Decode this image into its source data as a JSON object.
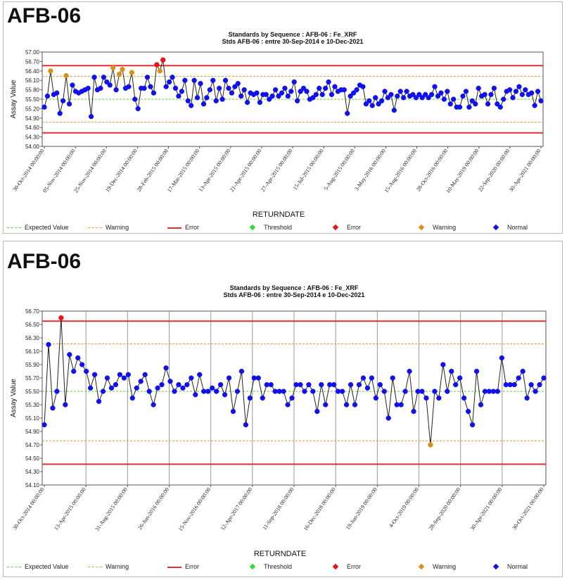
{
  "charts": [
    {
      "heading": "AFB-06",
      "title": "Standards by Sequence : AFB-06 : Fe_XRF",
      "subtitle": "Stds AFB-06 : entre 30-Sep-2014 e 10-Dec-2021",
      "xlabel": "RETURNDATE",
      "ylabel": "Assay Value"
    },
    {
      "heading": "AFB-06",
      "title": "Standards by Sequence : AFB-06 : Fe_XRF",
      "subtitle": "Stds AFB-06 : entre 30-Sep-2014 e 10-Dec-2021",
      "xlabel": "RETURNDATE",
      "ylabel": "Assay Value"
    }
  ],
  "legend": [
    {
      "label": "Expected Value",
      "kind": "dashed",
      "color": "#66cc33"
    },
    {
      "label": "Warning",
      "kind": "dashed",
      "color": "#e0a020"
    },
    {
      "label": "Error",
      "kind": "solid",
      "color": "#e03030"
    },
    {
      "label": "Threshold",
      "kind": "dot",
      "color": "#33dd33"
    },
    {
      "label": "Error",
      "kind": "dot",
      "color": "#ee1111"
    },
    {
      "label": "Warning",
      "kind": "dot",
      "color": "#d9901a"
    },
    {
      "label": "Normal",
      "kind": "dot",
      "color": "#1111ee"
    }
  ],
  "colors": {
    "normal": "#1111ee",
    "warning": "#d9901a",
    "error": "#ee1111",
    "error_line": "#e03030",
    "warning_line": "#e0a020",
    "expected_line": "#66cc33",
    "data_line": "#222222"
  },
  "chart_data": [
    {
      "type": "line",
      "title": "Standards by Sequence : AFB-06 : Fe_XRF",
      "subtitle": "Stds AFB-06 : entre 30-Sep-2014 e 10-Dec-2021",
      "xlabel": "RETURNDATE",
      "ylabel": "Assay Value",
      "ylim": [
        54.0,
        57.0
      ],
      "yticks": [
        "57.00",
        "56.70",
        "56.40",
        "56.10",
        "55.80",
        "55.50",
        "55.20",
        "54.90",
        "54.60",
        "54.30",
        "54.00"
      ],
      "xticks": [
        "30-Oct-2014 00:00:00",
        "05-Nov-2014 00:00:00",
        "25-Nov-2014 00:00:00",
        "19-Dec-2014 00:00:00",
        "28-Feb-2015 00:00:00",
        "17-Mar-2015 00:00:00",
        "13-Apr-2015 00:00:00",
        "21-Apr-2015 00:00:00",
        "27-Apr-2015 00:00:00",
        "15-Jul-2015 00:00:00",
        "5-Aug-2015 00:00:00",
        "3-May-2016 00:00:00",
        "15-Aug-2016 00:00:00",
        "28-Oct-2016 00:00:00",
        "10-May-2019 00:00:00",
        "22-Sep-2020 00:00:00",
        "30-Apr-2021 00:00:00"
      ],
      "reference_lines": {
        "expected": 55.5,
        "warning": [
          54.77,
          56.23
        ],
        "error": [
          54.43,
          56.57
        ]
      },
      "grid": false,
      "legend": "bottom",
      "series": [
        {
          "values": [
            55.25,
            55.6,
            56.4,
            55.65,
            55.7,
            55.05,
            55.45,
            56.25,
            55.35,
            55.95,
            55.75,
            55.7,
            55.75,
            55.8,
            55.85,
            54.95,
            56.2,
            55.8,
            55.85,
            56.2,
            56.05,
            55.95,
            56.5,
            55.8,
            56.3,
            56.45,
            55.85,
            55.9,
            56.35,
            55.5,
            55.2,
            55.85,
            55.85,
            56.2,
            55.9,
            55.7,
            56.6,
            56.4,
            56.75,
            55.9,
            56.05,
            56.2,
            55.85,
            55.6,
            55.75,
            56.1,
            55.45,
            55.3,
            56.1,
            55.55,
            56.0,
            55.35,
            55.55,
            55.8,
            56.1,
            55.45,
            55.85,
            55.5,
            56.1,
            55.85,
            55.7,
            55.9,
            56.0,
            55.6,
            55.8,
            55.4,
            55.7,
            55.65,
            55.7,
            55.4,
            55.65,
            55.65,
            55.5,
            55.6,
            55.8,
            55.6,
            55.7,
            55.85,
            55.6,
            55.75,
            56.05,
            55.45,
            55.75,
            55.85,
            55.75,
            55.5,
            55.55,
            55.65,
            55.85,
            55.65,
            55.85,
            56.05,
            55.65,
            55.9,
            55.75,
            55.8,
            55.8,
            55.05,
            55.6,
            55.7,
            55.8,
            55.95,
            55.9,
            55.35,
            55.45,
            55.3,
            55.55,
            55.35,
            55.45,
            55.75,
            55.55,
            55.65,
            55.15,
            55.6,
            55.75,
            55.55,
            55.75,
            55.6,
            55.65,
            55.55,
            55.65,
            55.55,
            55.65,
            55.55,
            55.65,
            55.9,
            55.6,
            55.7,
            55.5,
            55.75,
            55.35,
            55.5,
            55.25,
            55.25,
            55.6,
            55.75,
            55.25,
            55.45,
            55.35,
            55.85,
            55.6,
            55.65,
            55.35,
            55.65,
            55.85,
            55.35,
            55.25,
            55.5,
            55.75,
            55.8,
            55.55,
            55.75,
            55.9,
            55.65,
            55.8,
            55.65,
            55.7,
            55.3,
            55.75,
            55.45
          ],
          "status": {
            "2": "warning",
            "7": "warning",
            "22": "warning",
            "24": "warning",
            "25": "warning",
            "28": "warning",
            "36": "error",
            "37": "warning",
            "38": "error"
          }
        }
      ]
    },
    {
      "type": "line",
      "title": "Standards by Sequence : AFB-06 : Fe_XRF",
      "subtitle": "Stds AFB-06 : entre 30-Sep-2014 e 10-Dec-2021",
      "xlabel": "RETURNDATE",
      "ylabel": "Assay Value",
      "ylim": [
        54.1,
        56.7
      ],
      "yticks": [
        "56.70",
        "56.50",
        "56.30",
        "56.10",
        "55.90",
        "55.70",
        "55.50",
        "55.30",
        "55.10",
        "54.90",
        "54.70",
        "54.50",
        "54.30",
        "54.10"
      ],
      "xticks": [
        "30-Oct-2014 00:00:00",
        "13-Apr-2015 00:00:00",
        "31-Aug-2015 00:00:00",
        "26-Jun-2016 00:00:00",
        "15-Nov-2016 00:00:00",
        "12-Apr-2017 00:00:00",
        "11-Sep-2018 00:00:00",
        "16-Dec-2018 00:00:00",
        "19-Jun-2019 00:00:00",
        "4-Oct-2019 00:00:00",
        "28-Sep-2020 00:00:00",
        "30-Apr-2021 00:00:00",
        "30-Oct-2021 00:00:00"
      ],
      "reference_lines": {
        "expected": 55.5,
        "warning": [
          54.76,
          56.21
        ],
        "error": [
          54.41,
          56.55
        ]
      },
      "grid": true,
      "legend": "bottom",
      "series": [
        {
          "values": [
            55.0,
            56.2,
            55.25,
            55.5,
            56.6,
            55.3,
            56.05,
            55.8,
            56.0,
            55.9,
            55.8,
            55.55,
            55.75,
            55.35,
            55.5,
            55.7,
            55.55,
            55.6,
            55.75,
            55.7,
            55.75,
            55.4,
            55.55,
            55.65,
            55.75,
            55.5,
            55.3,
            55.55,
            55.6,
            55.85,
            55.65,
            55.5,
            55.6,
            55.55,
            55.6,
            55.7,
            55.45,
            55.75,
            55.5,
            55.5,
            55.55,
            55.5,
            55.6,
            55.45,
            55.7,
            55.2,
            55.5,
            55.8,
            55.0,
            55.4,
            55.7,
            55.7,
            55.4,
            55.6,
            55.6,
            55.5,
            55.5,
            55.5,
            55.3,
            55.4,
            55.6,
            55.6,
            55.5,
            55.6,
            55.5,
            55.2,
            55.6,
            55.3,
            55.6,
            55.6,
            55.5,
            55.5,
            55.3,
            55.6,
            55.3,
            55.6,
            55.7,
            55.55,
            55.7,
            55.4,
            55.6,
            55.5,
            55.1,
            55.7,
            55.3,
            55.3,
            55.5,
            55.8,
            55.2,
            55.5,
            55.5,
            55.4,
            54.7,
            55.5,
            55.4,
            55.9,
            55.5,
            55.8,
            55.6,
            55.7,
            55.4,
            55.2,
            55.0,
            55.8,
            55.3,
            55.5,
            55.5,
            55.5,
            55.5,
            56.0,
            55.6,
            55.6,
            55.6,
            55.7,
            55.8,
            55.4,
            55.6,
            55.5,
            55.6,
            55.7
          ],
          "status": {
            "4": "error",
            "92": "warning"
          }
        }
      ]
    }
  ]
}
